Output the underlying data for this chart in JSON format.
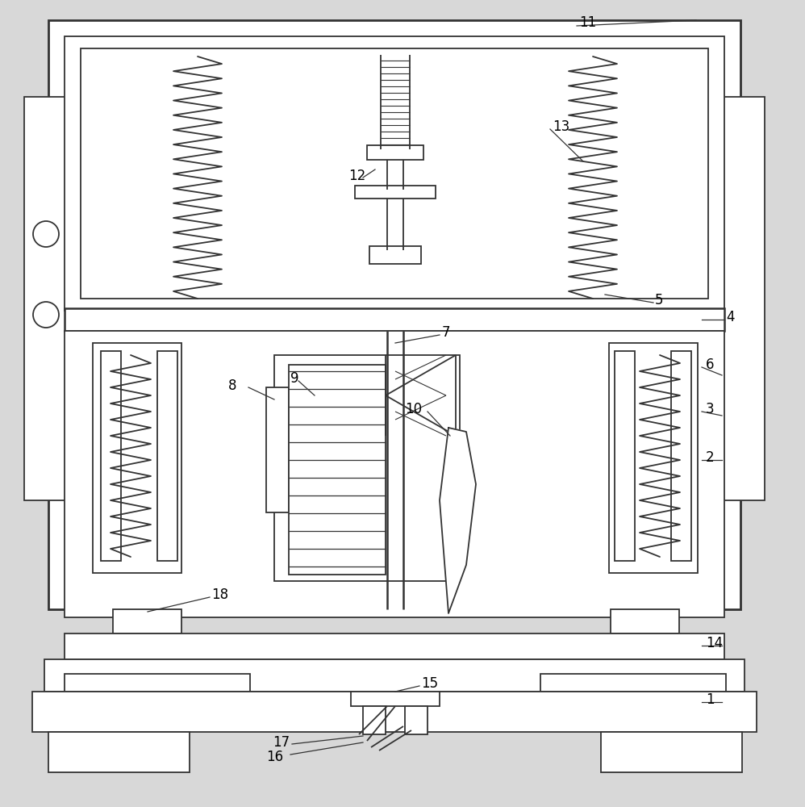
{
  "lc": "#333333",
  "lw": 1.3,
  "bg": "#e8e8e8",
  "figsize": [
    9.98,
    10.0
  ],
  "dpi": 100
}
